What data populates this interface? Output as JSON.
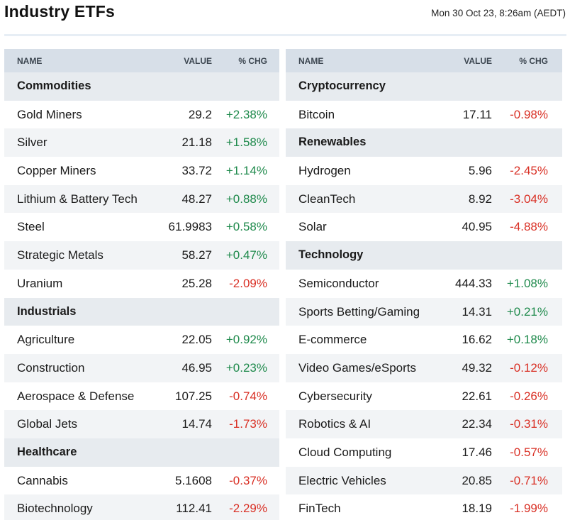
{
  "header": {
    "title": "Industry ETFs",
    "timestamp": "Mon 30 Oct 23, 8:26am (AEDT)"
  },
  "columns": {
    "name": "NAME",
    "value": "VALUE",
    "change": "% CHG"
  },
  "colors": {
    "up": "#1f8a4c",
    "down": "#d93025",
    "header_bg": "#d7dfe8",
    "group_bg": "#e7ebef"
  },
  "left_table": [
    {
      "type": "group",
      "name": "Commodities"
    },
    {
      "type": "item",
      "name": "Gold Miners",
      "value": "29.2",
      "change": "+2.38%",
      "dir": "up"
    },
    {
      "type": "item",
      "name": "Silver",
      "value": "21.18",
      "change": "+1.58%",
      "dir": "up"
    },
    {
      "type": "item",
      "name": "Copper Miners",
      "value": "33.72",
      "change": "+1.14%",
      "dir": "up"
    },
    {
      "type": "item",
      "name": "Lithium & Battery Tech",
      "value": "48.27",
      "change": "+0.88%",
      "dir": "up"
    },
    {
      "type": "item",
      "name": "Steel",
      "value": "61.9983",
      "change": "+0.58%",
      "dir": "up"
    },
    {
      "type": "item",
      "name": "Strategic Metals",
      "value": "58.27",
      "change": "+0.47%",
      "dir": "up"
    },
    {
      "type": "item",
      "name": "Uranium",
      "value": "25.28",
      "change": "-2.09%",
      "dir": "down"
    },
    {
      "type": "group",
      "name": "Industrials"
    },
    {
      "type": "item",
      "name": "Agriculture",
      "value": "22.05",
      "change": "+0.92%",
      "dir": "up"
    },
    {
      "type": "item",
      "name": "Construction",
      "value": "46.95",
      "change": "+0.23%",
      "dir": "up"
    },
    {
      "type": "item",
      "name": "Aerospace & Defense",
      "value": "107.25",
      "change": "-0.74%",
      "dir": "down"
    },
    {
      "type": "item",
      "name": "Global Jets",
      "value": "14.74",
      "change": "-1.73%",
      "dir": "down"
    },
    {
      "type": "group",
      "name": "Healthcare"
    },
    {
      "type": "item",
      "name": "Cannabis",
      "value": "5.1608",
      "change": "-0.37%",
      "dir": "down"
    },
    {
      "type": "item",
      "name": "Biotechnology",
      "value": "112.41",
      "change": "-2.29%",
      "dir": "down"
    }
  ],
  "right_table": [
    {
      "type": "group",
      "name": "Cryptocurrency"
    },
    {
      "type": "item",
      "name": "Bitcoin",
      "value": "17.11",
      "change": "-0.98%",
      "dir": "down"
    },
    {
      "type": "group",
      "name": "Renewables"
    },
    {
      "type": "item",
      "name": "Hydrogen",
      "value": "5.96",
      "change": "-2.45%",
      "dir": "down"
    },
    {
      "type": "item",
      "name": "CleanTech",
      "value": "8.92",
      "change": "-3.04%",
      "dir": "down"
    },
    {
      "type": "item",
      "name": "Solar",
      "value": "40.95",
      "change": "-4.88%",
      "dir": "down"
    },
    {
      "type": "group",
      "name": "Technology"
    },
    {
      "type": "item",
      "name": "Semiconductor",
      "value": "444.33",
      "change": "+1.08%",
      "dir": "up"
    },
    {
      "type": "item",
      "name": "Sports Betting/Gaming",
      "value": "14.31",
      "change": "+0.21%",
      "dir": "up"
    },
    {
      "type": "item",
      "name": "E-commerce",
      "value": "16.62",
      "change": "+0.18%",
      "dir": "up"
    },
    {
      "type": "item",
      "name": "Video Games/eSports",
      "value": "49.32",
      "change": "-0.12%",
      "dir": "down"
    },
    {
      "type": "item",
      "name": "Cybersecurity",
      "value": "22.61",
      "change": "-0.26%",
      "dir": "down"
    },
    {
      "type": "item",
      "name": "Robotics & AI",
      "value": "22.34",
      "change": "-0.31%",
      "dir": "down"
    },
    {
      "type": "item",
      "name": "Cloud Computing",
      "value": "17.46",
      "change": "-0.57%",
      "dir": "down"
    },
    {
      "type": "item",
      "name": "Electric Vehicles",
      "value": "20.85",
      "change": "-0.71%",
      "dir": "down"
    },
    {
      "type": "item",
      "name": "FinTech",
      "value": "18.19",
      "change": "-1.99%",
      "dir": "down"
    }
  ]
}
